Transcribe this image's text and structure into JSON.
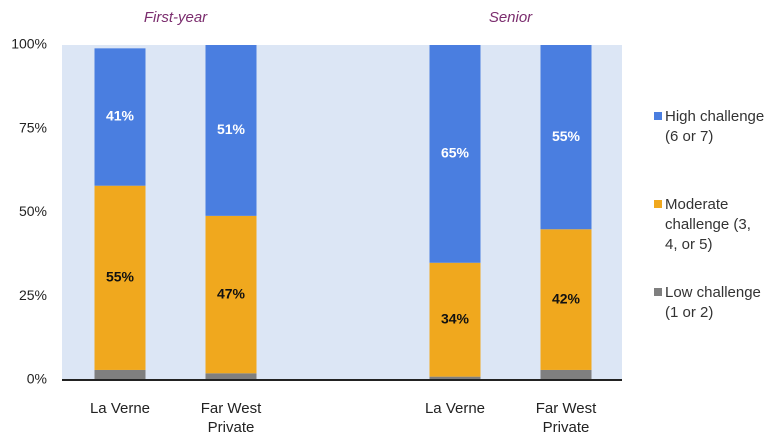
{
  "chart_data": {
    "type": "stacked_bar",
    "group_labels": [
      "First-year",
      "Senior"
    ],
    "categories": [
      "La Verne",
      "Far West Private",
      "La Verne",
      "Far West Private"
    ],
    "series": [
      {
        "name": "Low challenge (1 or 2)",
        "color": "#7f7f7f",
        "values": [
          3,
          2,
          1,
          3
        ]
      },
      {
        "name": "Moderate challenge (3, 4, or 5)",
        "color": "#f0a81e",
        "values": [
          55,
          47,
          34,
          42
        ],
        "value_labels": [
          "55%",
          "47%",
          "34%",
          "42%"
        ]
      },
      {
        "name": "High challenge (6 or 7)",
        "color": "#4a7ee0",
        "values": [
          41,
          51,
          65,
          55
        ],
        "value_labels": [
          "41%",
          "51%",
          "65%",
          "55%"
        ]
      }
    ],
    "ylim": [
      0,
      100
    ],
    "yticks": [
      {
        "value": 0,
        "label": "0%"
      },
      {
        "value": 25,
        "label": "25%"
      },
      {
        "value": 50,
        "label": "50%"
      },
      {
        "value": 75,
        "label": "75%"
      },
      {
        "value": 100,
        "label": "100%"
      }
    ],
    "grid": false,
    "legend": "right"
  }
}
